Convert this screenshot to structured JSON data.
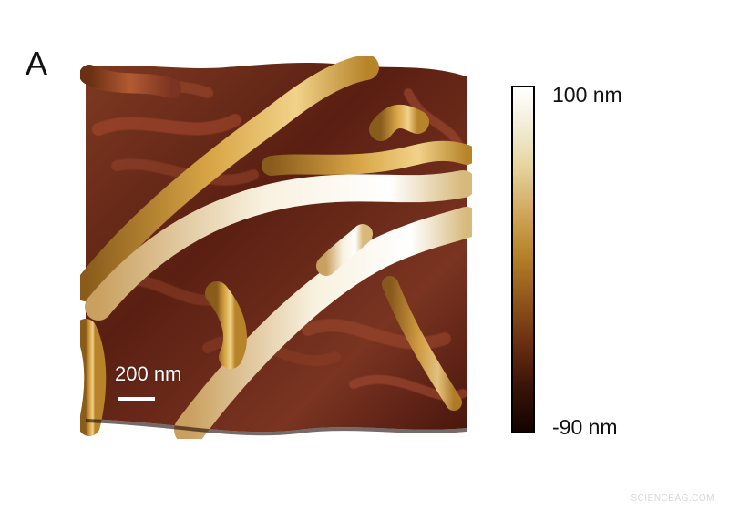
{
  "figure": {
    "panel_label": "A",
    "scale_bar_label": "200 nm",
    "colorbar": {
      "max_label": "100 nm",
      "min_label": "-90 nm"
    },
    "watermark": "SCIENCEAG.COM"
  }
}
